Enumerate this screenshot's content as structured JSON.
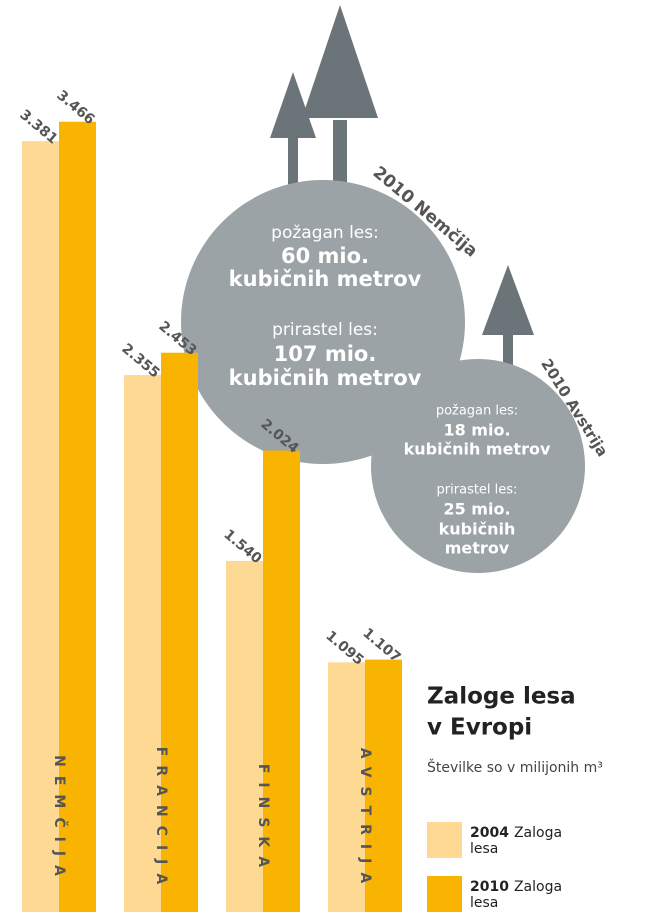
{
  "chart_data": {
    "type": "bar",
    "title": [
      "Zaloge lesa",
      "v Evropi"
    ],
    "subtitle": "Številke so v milijonih m³",
    "categories": [
      "NEMČIJA",
      "FRANCIJA",
      "FINSKA",
      "AVSTRIJA"
    ],
    "series": [
      {
        "name": "2004",
        "color": "#fdd993",
        "values": [
          3381,
          2355,
          1540,
          1095
        ],
        "value_labels": [
          "3.381",
          "2.355",
          "1.540",
          "1.095"
        ]
      },
      {
        "name": "2010",
        "color": "#f8b400",
        "values": [
          3466,
          2453,
          2024,
          1107
        ],
        "value_labels": [
          "3.466",
          "2.453",
          "2.024",
          "1.107"
        ]
      }
    ],
    "legend_text": [
      "Zaloga",
      "lesa"
    ],
    "ylim": [
      0,
      3500
    ],
    "annotations": [
      {
        "title": "2010 Nemčija",
        "lines": [
          "požagan les:",
          "60 mio.",
          "kubičnih metrov",
          "prirastel les:",
          "107 mio.",
          "kubičnih metrov"
        ]
      },
      {
        "title": "2010 Avstrija",
        "lines": [
          "požagan les:",
          "18 mio.",
          "kubičnih metrov",
          "prirastel les:",
          "25 mio.",
          "kubičnih",
          "metrov"
        ]
      }
    ]
  }
}
